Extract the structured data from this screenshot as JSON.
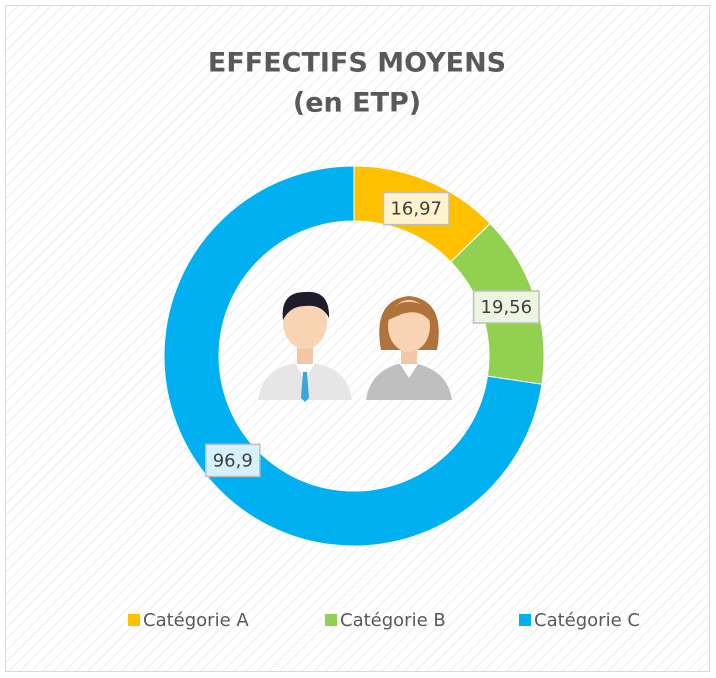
{
  "chart_data": {
    "type": "donut",
    "title": [
      "EFFECTIFS MOYENS",
      "(en ETP)"
    ],
    "categories": [
      "Catégorie A",
      "Catégorie B",
      "Catégorie C"
    ],
    "values": [
      16.97,
      19.56,
      96.9
    ],
    "value_labels": [
      "16,97",
      "19,56",
      "96,9"
    ],
    "colors": [
      "#FFC000",
      "#92D050",
      "#00B0F0"
    ],
    "legend": "bottom"
  }
}
